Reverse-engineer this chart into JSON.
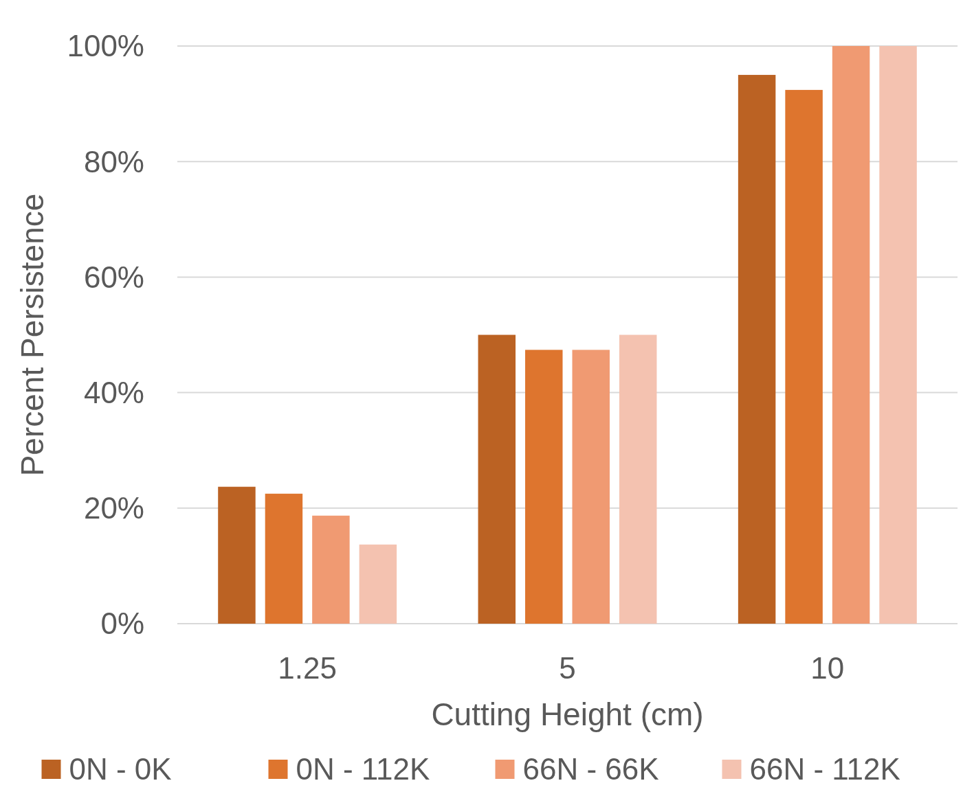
{
  "chart_data": {
    "type": "bar",
    "xlabel": "Cutting Height (cm)",
    "ylabel": "Percent Persistence",
    "categories": [
      "1.25",
      "5",
      "10"
    ],
    "series": [
      {
        "name": "0N - 0K",
        "color": "#bb6223",
        "values": [
          23.7,
          50,
          95
        ]
      },
      {
        "name": "0N - 112K",
        "color": "#de752e",
        "values": [
          22.5,
          47.4,
          92.4
        ]
      },
      {
        "name": "66N - 66K",
        "color": "#f09a72",
        "values": [
          18.7,
          47.4,
          100
        ]
      },
      {
        "name": "66N - 112K",
        "color": "#f4c2b0",
        "values": [
          13.7,
          50,
          100
        ]
      }
    ],
    "ylim": [
      0,
      100
    ],
    "yticks": [
      {
        "value": 0,
        "label": "0%"
      },
      {
        "value": 20,
        "label": "20%"
      },
      {
        "value": 40,
        "label": "40%"
      },
      {
        "value": 60,
        "label": "60%"
      },
      {
        "value": 80,
        "label": "80%"
      },
      {
        "value": 100,
        "label": "100%"
      }
    ],
    "grid": "y",
    "legend": "bottom"
  }
}
